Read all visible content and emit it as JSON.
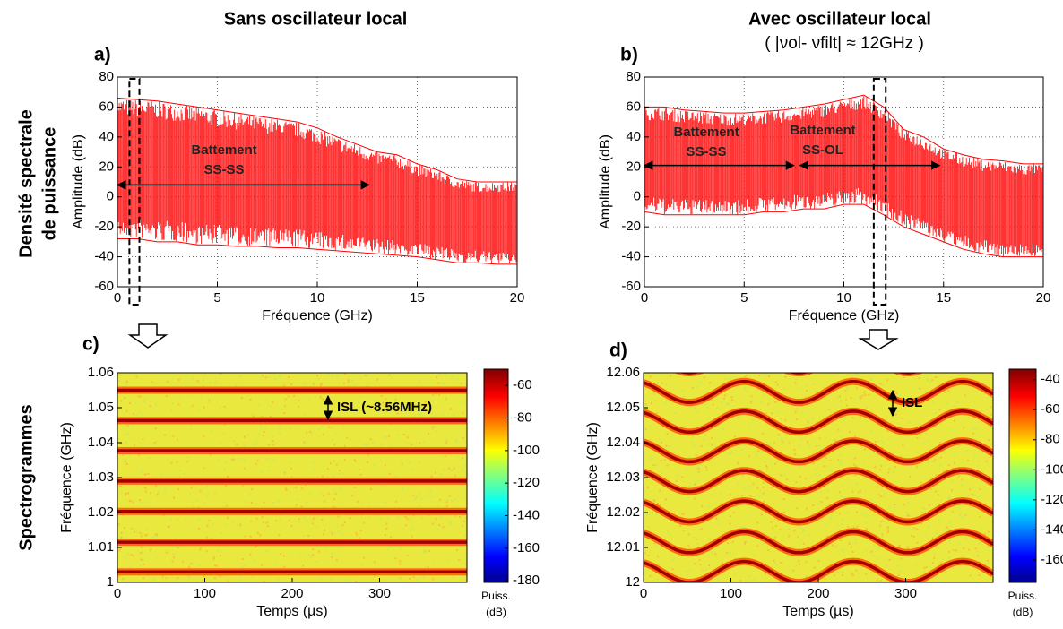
{
  "figure": {
    "column_titles": [
      "Sans oscillateur local",
      "Avec oscillateur local",
      "( |νol- νfilt| ≈ 12GHz )"
    ],
    "row_labels": [
      "Densité spectrale",
      "de puissance",
      "Spectrogrammes"
    ]
  },
  "chart_data": [
    {
      "type": "spectrum",
      "panel_label": "a)",
      "color": "#ff0000",
      "x": [
        0,
        1,
        2,
        3,
        4,
        5,
        6,
        7,
        8,
        9,
        10,
        11,
        12,
        13,
        14,
        15,
        16,
        17,
        18,
        19,
        20
      ],
      "values": [
        66,
        65,
        64,
        62,
        60,
        58,
        56,
        54,
        52,
        50,
        46,
        40,
        35,
        30,
        28,
        22,
        18,
        12,
        10,
        10,
        10
      ],
      "lows": [
        -28,
        -28,
        -30,
        -30,
        -32,
        -32,
        -33,
        -33,
        -34,
        -34,
        -35,
        -36,
        -37,
        -38,
        -39,
        -40,
        -42,
        -44,
        -44,
        -45,
        -45
      ],
      "xlim": [
        0,
        20
      ],
      "ylim": [
        -60,
        80
      ],
      "xticks": [
        0,
        5,
        10,
        15,
        20
      ],
      "yticks": [
        -60,
        -40,
        -20,
        0,
        20,
        40,
        60,
        80
      ],
      "xlabel": "Fréquence (GHz)",
      "ylabel": "Amplitude (dB)",
      "grid": true,
      "annotations": [
        "Battement",
        "SS-SS"
      ]
    },
    {
      "type": "spectrum",
      "panel_label": "b)",
      "color": "#ff0000",
      "x": [
        0,
        1,
        2,
        3,
        4,
        5,
        6,
        7,
        8,
        9,
        10,
        11,
        12,
        13,
        14,
        15,
        16,
        17,
        18,
        19,
        20
      ],
      "values": [
        60,
        60,
        58,
        57,
        56,
        56,
        57,
        58,
        60,
        62,
        65,
        68,
        60,
        45,
        40,
        32,
        28,
        25,
        24,
        22,
        22
      ],
      "lows": [
        -10,
        -12,
        -12,
        -12,
        -12,
        -12,
        -10,
        -10,
        -8,
        -8,
        -5,
        -5,
        -12,
        -20,
        -25,
        -30,
        -35,
        -38,
        -40,
        -40,
        -40
      ],
      "xlim": [
        0,
        20
      ],
      "ylim": [
        -60,
        80
      ],
      "xticks": [
        0,
        5,
        10,
        15,
        20
      ],
      "yticks": [
        -60,
        -40,
        -20,
        0,
        20,
        40,
        60,
        80
      ],
      "xlabel": "Fréquence (GHz)",
      "ylabel": "Amplitude (dB)",
      "grid": true,
      "annotations": [
        "Battement",
        "SS-SS",
        "Battement",
        "SS-OL"
      ]
    },
    {
      "type": "spectrogram",
      "panel_label": "c)",
      "line_frequencies": [
        1.003,
        1.0115,
        1.0203,
        1.029,
        1.0377,
        1.0463,
        1.055
      ],
      "xlim": [
        0,
        400
      ],
      "ylim": [
        1,
        1.06
      ],
      "xticks": [
        0,
        100,
        200,
        300
      ],
      "yticks": [
        1,
        1.01,
        1.02,
        1.03,
        1.04,
        1.05,
        1.06
      ],
      "xlabel": "Temps (µs)",
      "ylabel": "Fréquence (GHz)",
      "clim": [
        -181,
        -50
      ],
      "cticks": [
        -60,
        -80,
        -100,
        -120,
        -140,
        -160,
        -180
      ],
      "clabel": [
        "Puiss.",
        "(dB)"
      ],
      "annotations": [
        "ISL (~8.56MHz)"
      ]
    },
    {
      "type": "spectrogram",
      "panel_label": "d)",
      "line_frequencies": [
        11.9945,
        12.003,
        12.0115,
        12.0203,
        12.029,
        12.0375,
        12.046,
        12.0545,
        12.063
      ],
      "amplitude": 0.003,
      "period": 125,
      "phase_time": 115,
      "xlim": [
        0,
        400
      ],
      "ylim": [
        12,
        12.06
      ],
      "xticks": [
        0,
        100,
        200,
        300
      ],
      "yticks": [
        12,
        12.01,
        12.02,
        12.03,
        12.04,
        12.05,
        12.06
      ],
      "xlabel": "Temps (µs)",
      "ylabel": "Fréquence (GHz)",
      "clim": [
        -175,
        -33
      ],
      "cticks": [
        -40,
        -60,
        -80,
        -100,
        -120,
        -140,
        -160
      ],
      "clabel": [
        "Puiss.",
        "(dB)"
      ],
      "annotations": [
        "ISL"
      ]
    }
  ]
}
